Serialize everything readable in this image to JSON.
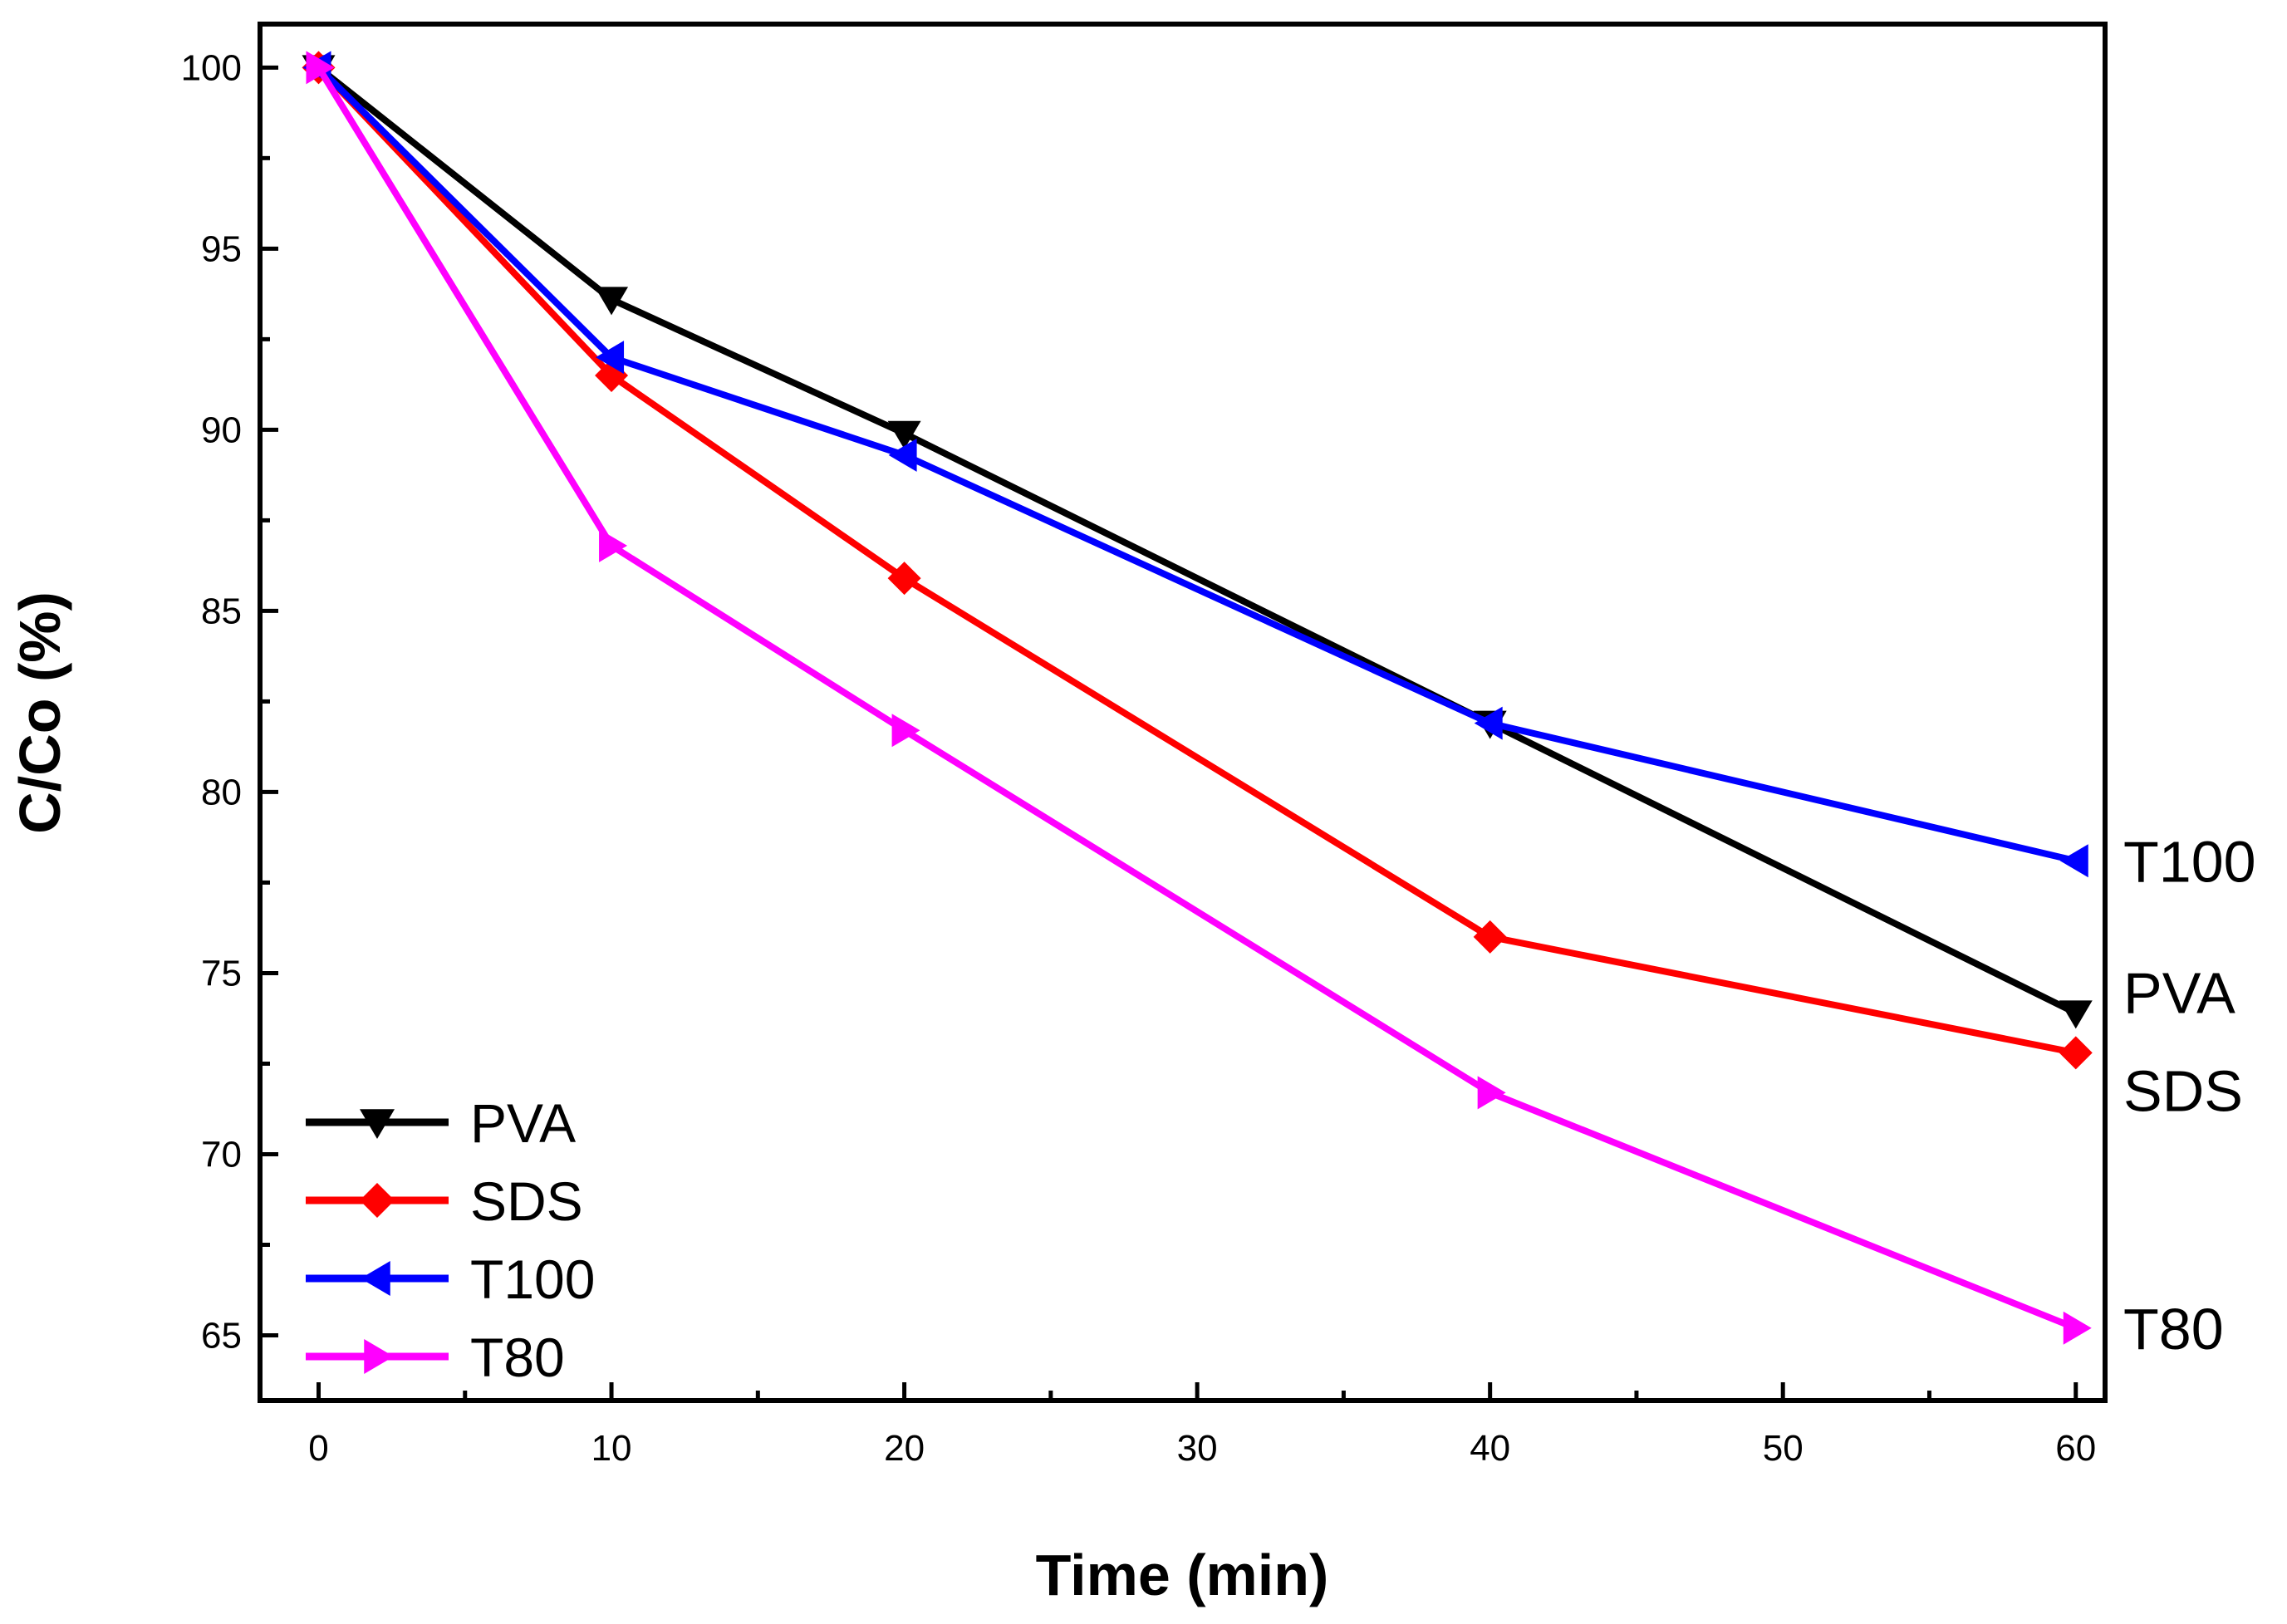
{
  "chart_data": {
    "type": "line",
    "title": "",
    "xlabel": "Time (min)",
    "ylabel": "C/Co (%)",
    "xlim": [
      -2,
      61
    ],
    "ylim": [
      63.2,
      101.2
    ],
    "x_ticks": [
      0,
      10,
      20,
      30,
      40,
      50,
      60
    ],
    "y_ticks": [
      65,
      70,
      75,
      80,
      85,
      90,
      95,
      100
    ],
    "grid": false,
    "legend": {
      "position": "bottom-left"
    },
    "x": [
      0,
      10,
      20,
      40,
      60
    ],
    "series": [
      {
        "name": "PVA",
        "color": "#000000",
        "marker": "triangle-down",
        "end_label": "PVA",
        "values": [
          100,
          93.6,
          89.9,
          81.9,
          73.9
        ]
      },
      {
        "name": "SDS",
        "color": "#ff0000",
        "marker": "diamond",
        "end_label": "SDS",
        "values": [
          100,
          91.5,
          85.9,
          76.0,
          72.8
        ]
      },
      {
        "name": "T100",
        "color": "#0000ff",
        "marker": "triangle-left",
        "end_label": "T100",
        "values": [
          100,
          92.0,
          89.3,
          81.9,
          78.1
        ]
      },
      {
        "name": "T80",
        "color": "#ff00ff",
        "marker": "triangle-right",
        "end_label": "T80",
        "values": [
          100,
          86.8,
          81.7,
          71.7,
          65.2
        ]
      }
    ]
  }
}
